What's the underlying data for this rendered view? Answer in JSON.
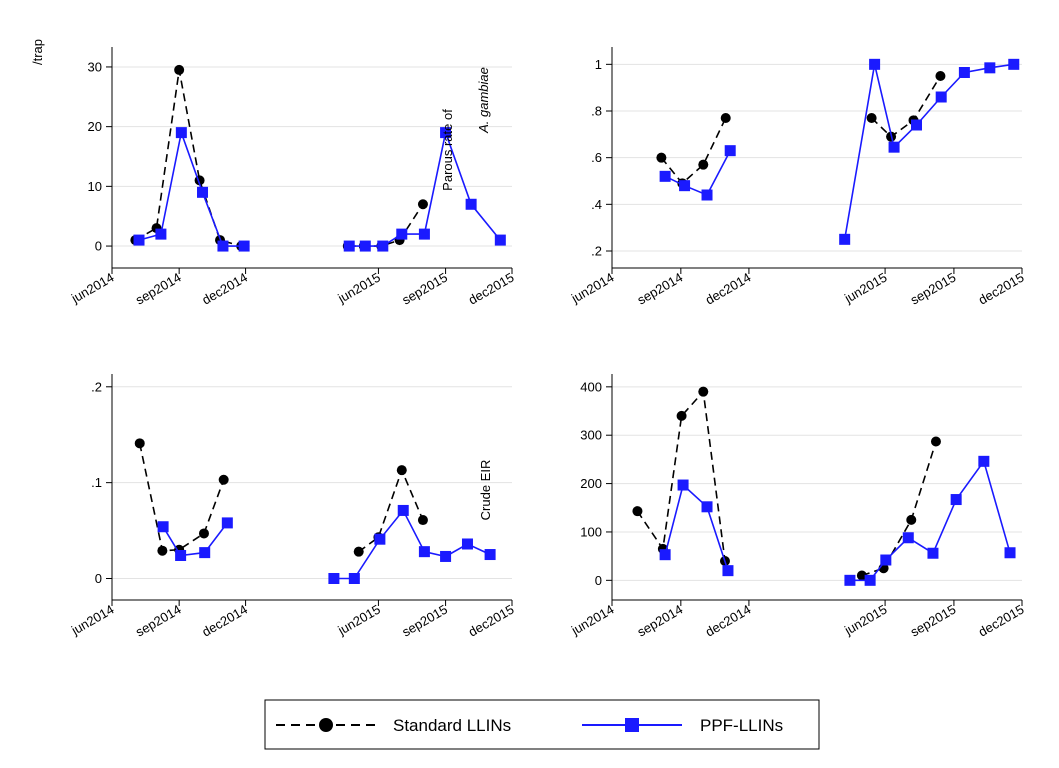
{
  "colors": {
    "standard": "#000000",
    "ppf": "#1a1aff",
    "grid": "#e3e3e3"
  },
  "legend": {
    "standard_label": "Standard LLINs",
    "ppf_label": "PPF-LLINs",
    "placement": "bottom-center"
  },
  "chart_data": [
    {
      "type": "line",
      "xlim": [
        "2014-06-01",
        "2015-12-01"
      ],
      "ylim": [
        -2,
        32
      ],
      "yticks": [
        0,
        10,
        20,
        30
      ],
      "ytick_labels": [
        "0",
        "10",
        "20",
        "30"
      ],
      "ylabel_lines": [
        "/trap"
      ],
      "xticks": [
        "2014-06-01",
        "2014-09-01",
        "2014-12-01",
        "2015-06-01",
        "2015-09-01",
        "2015-12-01"
      ],
      "xtick_labels": [
        "jun2014",
        "sep2014",
        "dec2014",
        "jun2015",
        "sep2015",
        "dec2015"
      ],
      "grid": true,
      "series": [
        {
          "key": "standard",
          "segments": [
            [
              [
                "2014-07-03",
                1
              ],
              [
                "2014-08-01",
                3
              ],
              [
                "2014-09-01",
                29.5
              ],
              [
                "2014-09-29",
                11
              ],
              [
                "2014-10-27",
                1
              ],
              [
                "2014-11-25",
                0
              ]
            ],
            [
              [
                "2015-04-20",
                0
              ],
              [
                "2015-05-12",
                0
              ],
              [
                "2015-06-05",
                0
              ],
              [
                "2015-06-30",
                1
              ],
              [
                "2015-08-01",
                7
              ]
            ]
          ]
        },
        {
          "key": "ppf",
          "segments": [
            [
              [
                "2014-07-08",
                1
              ],
              [
                "2014-08-07",
                2
              ],
              [
                "2014-09-04",
                19
              ],
              [
                "2014-10-03",
                9
              ],
              [
                "2014-10-31",
                0
              ],
              [
                "2014-11-29",
                0
              ]
            ],
            [
              [
                "2015-04-22",
                0
              ],
              [
                "2015-05-14",
                0
              ],
              [
                "2015-06-07",
                0
              ],
              [
                "2015-07-03",
                2
              ],
              [
                "2015-08-03",
                2
              ],
              [
                "2015-09-01",
                19
              ],
              [
                "2015-10-06",
                7
              ],
              [
                "2015-11-15",
                1
              ]
            ]
          ]
        }
      ]
    },
    {
      "type": "line",
      "xlim": [
        "2014-06-01",
        "2015-12-01"
      ],
      "ylim": [
        0.17,
        1.04
      ],
      "yticks": [
        0.2,
        0.4,
        0.6,
        0.8,
        1.0
      ],
      "ytick_labels": [
        ".2",
        ".4",
        ".6",
        ".8",
        "1"
      ],
      "ylabel_lines": [
        "Parous rate of",
        "A. gambiae"
      ],
      "xticks": [
        "2014-06-01",
        "2014-09-01",
        "2014-12-01",
        "2015-06-01",
        "2015-09-01",
        "2015-12-01"
      ],
      "xtick_labels": [
        "jun2014",
        "sep2014",
        "dec2014",
        "jun2015",
        "sep2015",
        "dec2015"
      ],
      "grid": true,
      "series": [
        {
          "key": "standard",
          "segments": [
            [
              [
                "2014-08-06",
                0.6
              ],
              [
                "2014-09-03",
                0.49
              ],
              [
                "2014-10-01",
                0.57
              ],
              [
                "2014-10-31",
                0.77
              ]
            ],
            [
              [
                "2015-05-14",
                0.77
              ],
              [
                "2015-06-09",
                0.69
              ],
              [
                "2015-07-09",
                0.76
              ],
              [
                "2015-08-14",
                0.95
              ]
            ]
          ]
        },
        {
          "key": "ppf",
          "segments": [
            [
              [
                "2014-08-11",
                0.52
              ],
              [
                "2014-09-06",
                0.48
              ],
              [
                "2014-10-06",
                0.44
              ],
              [
                "2014-11-06",
                0.63
              ]
            ],
            [
              [
                "2015-04-08",
                0.25
              ],
              [
                "2015-05-18",
                1.0
              ],
              [
                "2015-06-13",
                0.645
              ],
              [
                "2015-07-13",
                0.74
              ],
              [
                "2015-08-15",
                0.86
              ],
              [
                "2015-09-15",
                0.965
              ],
              [
                "2015-10-19",
                0.985
              ],
              [
                "2015-11-20",
                1.0
              ]
            ]
          ]
        }
      ]
    },
    {
      "type": "line",
      "xlim": [
        "2014-06-01",
        "2015-12-01"
      ],
      "ylim": [
        -0.012,
        0.205
      ],
      "yticks": [
        0,
        0.1,
        0.2
      ],
      "ytick_labels": [
        "0",
        ".1",
        ".2"
      ],
      "ylabel_lines": [
        "Crude EIR"
      ],
      "xticks": [
        "2014-06-01",
        "2014-09-01",
        "2014-12-01",
        "2015-06-01",
        "2015-09-01",
        "2015-12-01"
      ],
      "xtick_labels": [
        "jun2014",
        "sep2014",
        "dec2014",
        "jun2015",
        "sep2015",
        "dec2015"
      ],
      "grid": true,
      "series": [
        {
          "key": "standard",
          "segments": [
            [
              [
                "2014-07-09",
                0.141
              ],
              [
                "2014-08-09",
                0.029
              ],
              [
                "2014-09-01",
                0.03
              ],
              [
                "2014-10-05",
                0.047
              ],
              [
                "2014-11-01",
                0.103
              ]
            ],
            [
              [
                "2015-05-05",
                0.028
              ],
              [
                "2015-06-01",
                0.043
              ],
              [
                "2015-07-03",
                0.113
              ],
              [
                "2015-08-01",
                0.061
              ]
            ]
          ]
        },
        {
          "key": "ppf",
          "segments": [
            [
              [
                "2014-08-10",
                0.054
              ],
              [
                "2014-09-03",
                0.024
              ],
              [
                "2014-10-06",
                0.027
              ],
              [
                "2014-11-06",
                0.058
              ]
            ],
            [
              [
                "2015-04-01",
                0.0
              ],
              [
                "2015-04-29",
                0.0
              ],
              [
                "2015-06-03",
                0.041
              ],
              [
                "2015-07-05",
                0.071
              ],
              [
                "2015-08-03",
                0.028
              ],
              [
                "2015-09-01",
                0.023
              ],
              [
                "2015-10-01",
                0.036
              ],
              [
                "2015-11-01",
                0.025
              ]
            ]
          ]
        }
      ]
    },
    {
      "type": "line",
      "xlim": [
        "2014-06-01",
        "2015-12-01"
      ],
      "ylim": [
        -20,
        410
      ],
      "yticks": [
        0,
        100,
        200,
        300,
        400
      ],
      "ytick_labels": [
        "0",
        "100",
        "200",
        "300",
        "400"
      ],
      "ylabel_lines": [],
      "xticks": [
        "2014-06-01",
        "2014-09-01",
        "2014-12-01",
        "2015-06-01",
        "2015-09-01",
        "2015-12-01"
      ],
      "xtick_labels": [
        "jun2014",
        "sep2014",
        "dec2014",
        "jun2015",
        "sep2015",
        "dec2015"
      ],
      "grid": true,
      "series": [
        {
          "key": "standard",
          "segments": [
            [
              [
                "2014-07-05",
                143
              ],
              [
                "2014-08-08",
                65
              ],
              [
                "2014-09-02",
                340
              ],
              [
                "2014-10-01",
                390
              ],
              [
                "2014-10-30",
                40
              ]
            ],
            [
              [
                "2015-05-01",
                10
              ],
              [
                "2015-05-30",
                25
              ],
              [
                "2015-07-06",
                125
              ],
              [
                "2015-08-08",
                287
              ]
            ]
          ]
        },
        {
          "key": "ppf",
          "segments": [
            [
              [
                "2014-08-11",
                53
              ],
              [
                "2014-09-04",
                197
              ],
              [
                "2014-10-06",
                152
              ],
              [
                "2014-11-03",
                20
              ]
            ],
            [
              [
                "2015-04-15",
                0
              ],
              [
                "2015-05-12",
                0
              ],
              [
                "2015-06-02",
                42
              ],
              [
                "2015-07-02",
                88
              ],
              [
                "2015-08-04",
                56
              ],
              [
                "2015-09-04",
                167
              ],
              [
                "2015-10-11",
                246
              ],
              [
                "2015-11-15",
                57
              ]
            ]
          ]
        }
      ]
    }
  ]
}
